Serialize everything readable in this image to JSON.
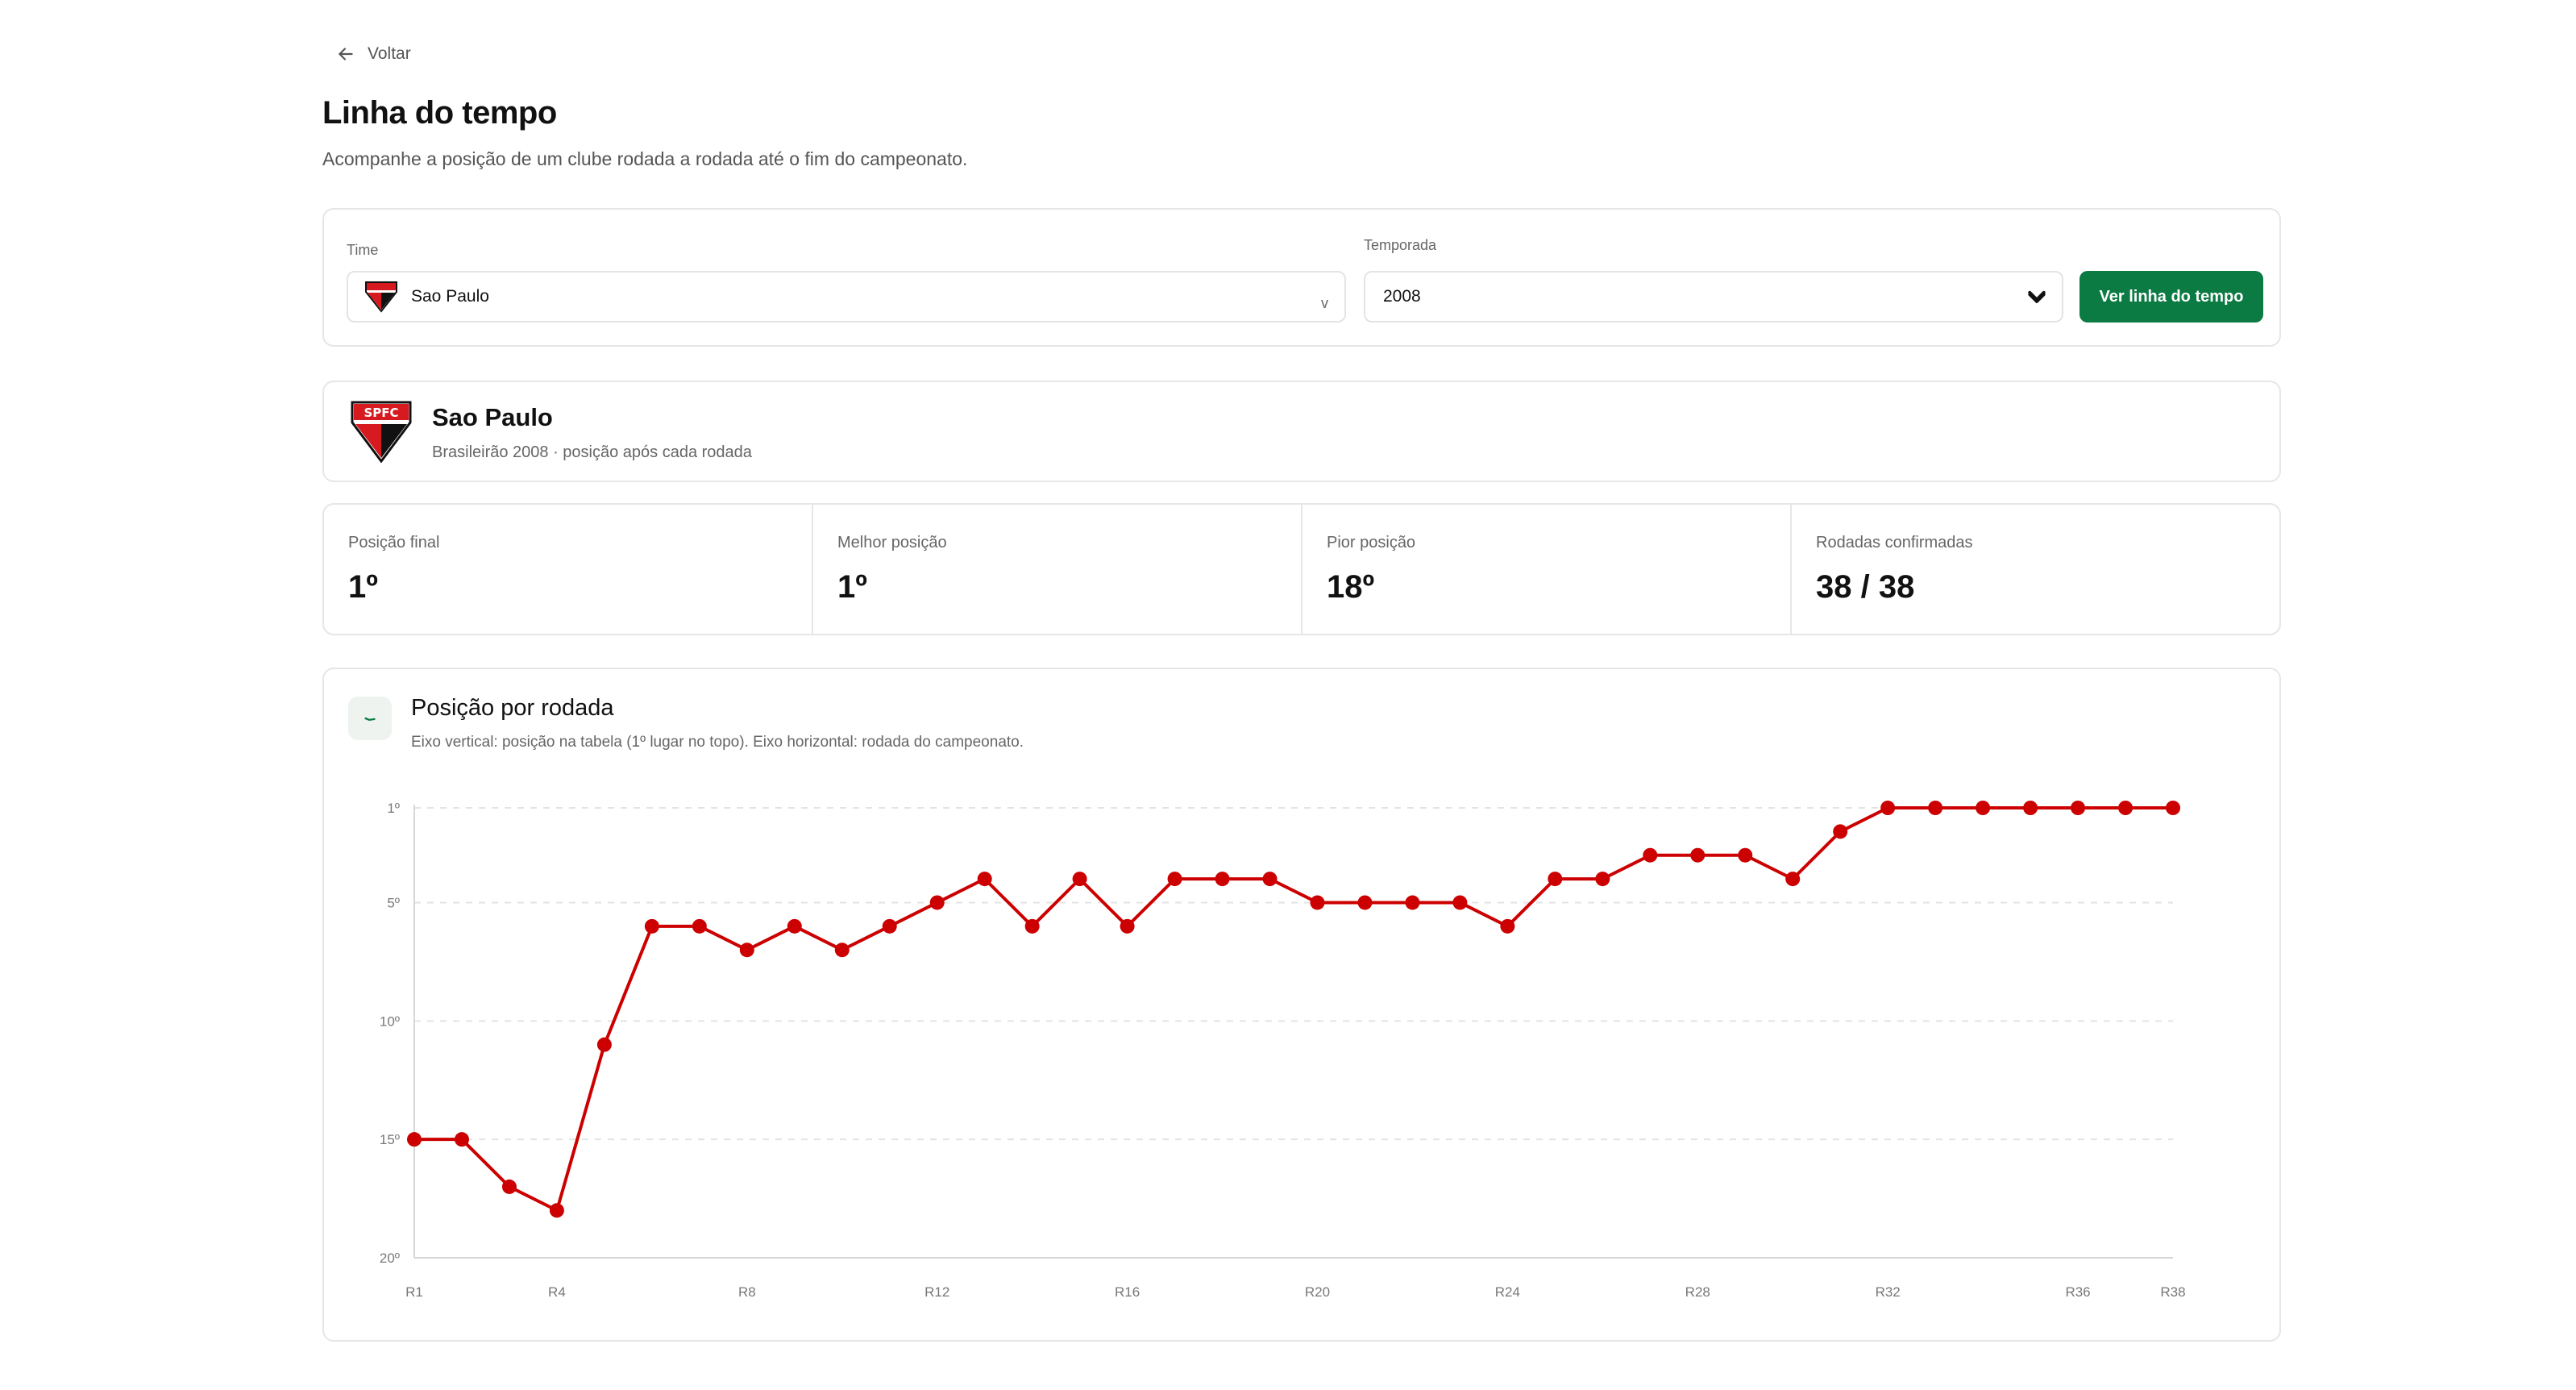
{
  "nav": {
    "back_label": "Voltar"
  },
  "page": {
    "title": "Linha do tempo",
    "subtitle": "Acompanhe a posição de um clube rodada a rodada até o fim do campeonato."
  },
  "filters": {
    "team_label": "Time",
    "team_value": "Sao Paulo",
    "team_chevron": "v",
    "season_label": "Temporada",
    "season_value": "2008",
    "button_label": "Ver linha do tempo",
    "button_color": "#0b7a43"
  },
  "team": {
    "name": "Sao Paulo",
    "subtitle": "Brasileirão 2008 · posição após cada rodada",
    "crest_text": "SPFC",
    "colors": {
      "red": "#d71920",
      "black": "#111111",
      "white": "#ffffff"
    }
  },
  "stats": [
    {
      "label": "Posição final",
      "value": "1º"
    },
    {
      "label": "Melhor posição",
      "value": "1º"
    },
    {
      "label": "Pior posição",
      "value": "18º"
    },
    {
      "label": "Rodadas confirmadas",
      "value": "38 / 38"
    }
  ],
  "chart_section": {
    "icon": "trend-line-icon",
    "title": "Posição por rodada",
    "description": "Eixo vertical: posição na tabela (1º lugar no topo). Eixo horizontal: rodada do campeonato."
  },
  "chart_data": {
    "type": "line",
    "title": "Posição por rodada",
    "xlabel": "",
    "ylabel": "",
    "x": [
      "R1",
      "R2",
      "R3",
      "R4",
      "R5",
      "R6",
      "R7",
      "R8",
      "R9",
      "R10",
      "R11",
      "R12",
      "R13",
      "R14",
      "R15",
      "R16",
      "R17",
      "R18",
      "R19",
      "R20",
      "R21",
      "R22",
      "R23",
      "R24",
      "R25",
      "R26",
      "R27",
      "R28",
      "R29",
      "R30",
      "R31",
      "R32",
      "R33",
      "R34",
      "R35",
      "R36",
      "R37",
      "R38"
    ],
    "x_tick_labels": [
      "R1",
      "R4",
      "R8",
      "R12",
      "R16",
      "R20",
      "R24",
      "R28",
      "R32",
      "R36",
      "R38"
    ],
    "series": [
      {
        "values": [
          15,
          15,
          17,
          18,
          11,
          6,
          6,
          7,
          6,
          7,
          6,
          5,
          4,
          6,
          4,
          6,
          4,
          4,
          4,
          5,
          5,
          5,
          5,
          6,
          4,
          4,
          3,
          3,
          3,
          4,
          2,
          1,
          1,
          1,
          1,
          1,
          1,
          1
        ],
        "color": "#cc0000"
      }
    ],
    "ylim": [
      1,
      20
    ],
    "y_inverted": true,
    "y_ticks": [
      1,
      5,
      10,
      15,
      20
    ],
    "y_tick_labels": [
      "1º",
      "5º",
      "10º",
      "15º",
      "20º"
    ],
    "grid": true,
    "legend": "none"
  }
}
